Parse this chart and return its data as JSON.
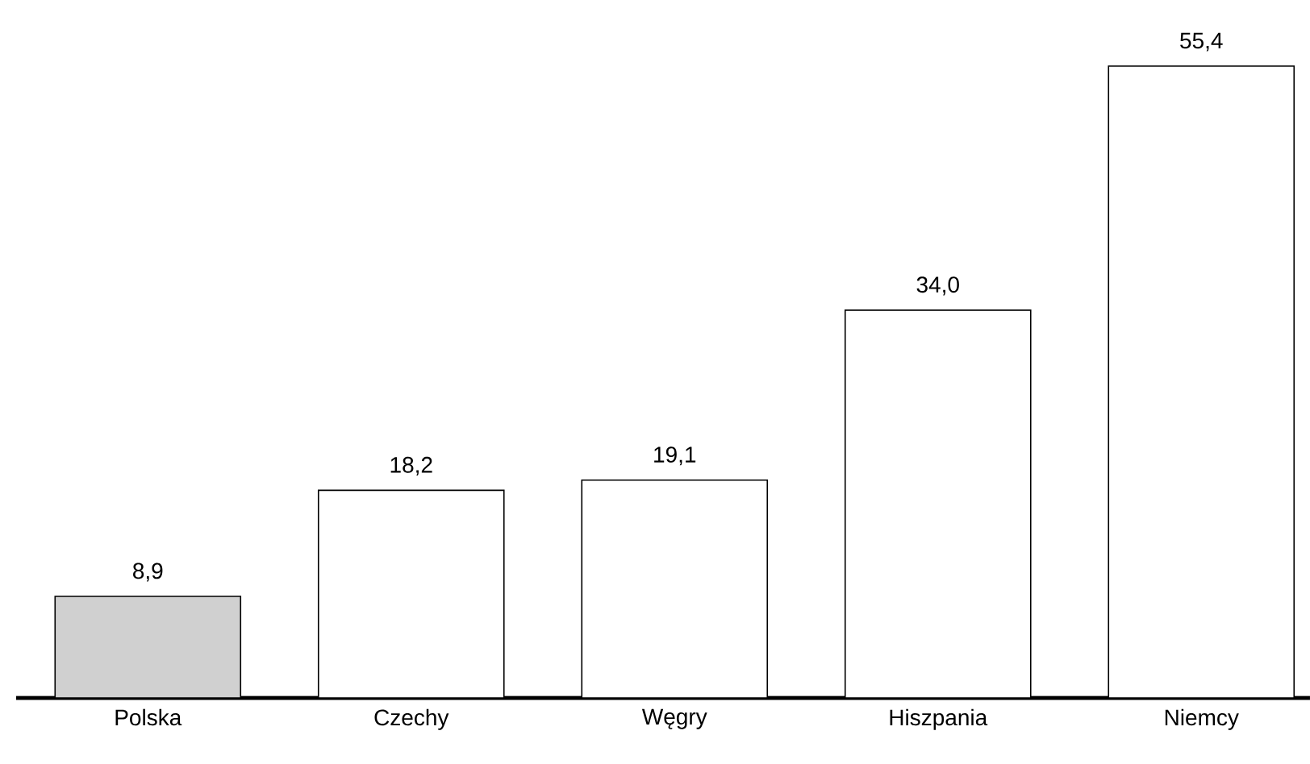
{
  "chart_data": {
    "type": "bar",
    "categories": [
      "Polska",
      "Czechy",
      "Węgry",
      "Hiszpania",
      "Niemcy"
    ],
    "values": [
      8.9,
      18.2,
      19.1,
      34.0,
      55.4
    ],
    "value_labels": [
      "8,9",
      "18,2",
      "19,1",
      "34,0",
      "55,4"
    ],
    "colors": [
      "#d0d0d0",
      "#ffffff",
      "#ffffff",
      "#ffffff",
      "#ffffff"
    ]
  }
}
